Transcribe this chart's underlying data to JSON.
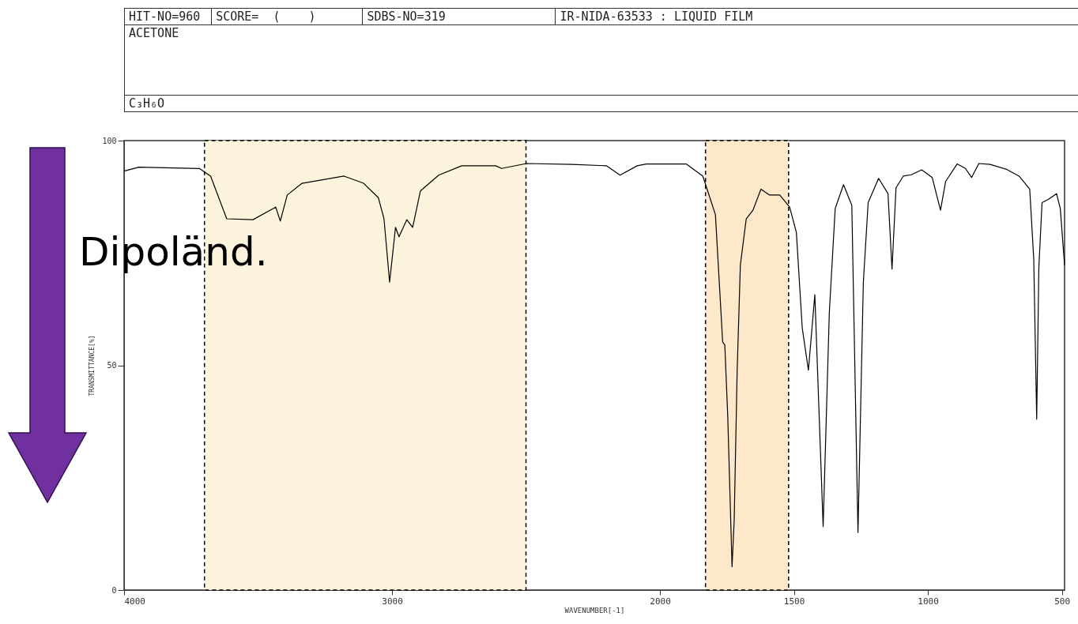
{
  "chart_data": {
    "type": "line",
    "title": "ACETONE",
    "subtitle": "C₃H₆O",
    "xlabel": "WAVENUMBER[-1]",
    "ylabel": "TRANSMITTANCE[%]",
    "annotations": [
      "HIT-NO=960",
      "SCORE=  (    )",
      "SDBS-NO=319",
      "IR-NIDA-63533 : LIQUID FILM",
      "Dipoländ."
    ],
    "xlim": [
      4000,
      490
    ],
    "xticks": [
      4000,
      3000,
      2000,
      1500,
      1000,
      500
    ],
    "ylim": [
      0,
      100
    ],
    "yticks": [
      {
        "value": 0,
        "label": "0"
      },
      {
        "value": 50,
        "label": "50"
      },
      {
        "value": 100,
        "label": "100"
      }
    ],
    "bands": [
      {
        "axis": "x",
        "from": 3700,
        "to": 2500,
        "color": "#fcf3dc"
      },
      {
        "axis": "x",
        "from": 1830,
        "to": 1520,
        "color": "#fde9c9"
      }
    ],
    "series": [
      {
        "color": "#000000",
        "x": [
          4000,
          3945,
          3719,
          3677,
          3617,
          3519,
          3434,
          3417,
          3391,
          3336,
          3179,
          3106,
          3051,
          3030,
          3009,
          2987,
          2974,
          2945,
          2923,
          2894,
          2826,
          2740,
          2613,
          2591,
          2498,
          2328,
          2200,
          2149,
          2085,
          2051,
          1902,
          1840,
          1793,
          1766,
          1758,
          1747,
          1731,
          1723,
          1712,
          1700,
          1678,
          1653,
          1623,
          1592,
          1553,
          1516,
          1491,
          1469,
          1446,
          1422,
          1391,
          1368,
          1346,
          1315,
          1284,
          1261,
          1241,
          1223,
          1184,
          1149,
          1134,
          1119,
          1092,
          1062,
          1023,
          984,
          953,
          934,
          891,
          860,
          837,
          810,
          768,
          706,
          660,
          620,
          605,
          594,
          586,
          574,
          551,
          520,
          506,
          490
        ],
        "values": [
          93.2,
          94.1,
          93.8,
          92.1,
          82.6,
          82.4,
          85.2,
          82.1,
          87.9,
          90.5,
          92.1,
          90.5,
          87.3,
          82.6,
          68.5,
          80.7,
          78.6,
          82.4,
          80.7,
          88.8,
          92.3,
          94.4,
          94.4,
          93.8,
          94.9,
          94.7,
          94.4,
          92.3,
          94.4,
          94.8,
          94.8,
          92.1,
          83.5,
          55.2,
          54.5,
          38.6,
          5.2,
          15.5,
          48.5,
          72.3,
          82.6,
          84.5,
          89.2,
          87.9,
          87.9,
          85.2,
          79.6,
          58.3,
          48.9,
          65.7,
          14.1,
          61.7,
          84.9,
          90.2,
          85.6,
          12.8,
          68.4,
          86.2,
          91.6,
          88.2,
          71.4,
          89.5,
          92.1,
          92.4,
          93.5,
          91.8,
          84.5,
          90.9,
          94.8,
          93.8,
          91.8,
          94.9,
          94.7,
          93.6,
          92.1,
          89.2,
          73.6,
          38.0,
          71.7,
          86.2,
          86.9,
          88.2,
          84.9,
          72.3
        ]
      }
    ]
  }
}
